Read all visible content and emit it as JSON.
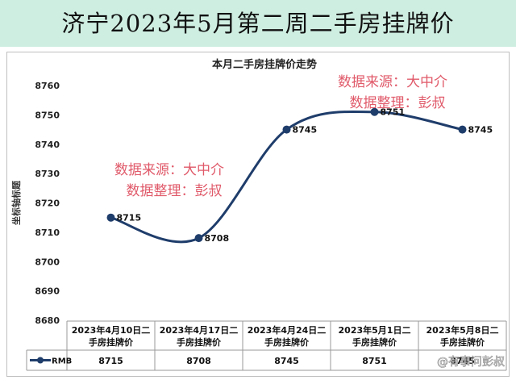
{
  "header": {
    "title": "济宁2023年5月第二周二手房挂牌价"
  },
  "chart_data": {
    "type": "line",
    "title": "本月二手房挂牌价走势",
    "ylabel": "坐标轴标题",
    "xlabel": "",
    "ylim": [
      8680,
      8760
    ],
    "yticks": [
      8680,
      8690,
      8700,
      8710,
      8720,
      8730,
      8740,
      8750,
      8760
    ],
    "grid": false,
    "categories": [
      "2023年4月10日二手房挂牌价",
      "2023年4月17日二手房挂牌价",
      "2023年4月24日二手房挂牌价",
      "2023年5月1日二手房挂牌价",
      "2023年5月8日二手房挂牌价"
    ],
    "category_lines": [
      [
        "2023年4月10日二",
        "手房挂牌价"
      ],
      [
        "2023年4月17日二",
        "手房挂牌价"
      ],
      [
        "2023年4月24日二",
        "手房挂牌价"
      ],
      [
        "2023年5月1日二",
        "手房挂牌价"
      ],
      [
        "2023年5月8日二",
        "手房挂牌价"
      ]
    ],
    "series": [
      {
        "name": "RMB",
        "values": [
          8715,
          8708,
          8745,
          8751,
          8745
        ],
        "color": "#1f3d6b"
      }
    ],
    "data_labels": true,
    "data_table": true
  },
  "annotations": [
    {
      "line1": "数据来源：大中介",
      "line2": "数据整理：彭叔",
      "color": "#e05a6a"
    },
    {
      "line1": "数据来源：大中介",
      "line2": "数据整理：彭叔",
      "color": "#e05a6a"
    }
  ],
  "watermark": {
    "text": "@有事问彭叔"
  }
}
